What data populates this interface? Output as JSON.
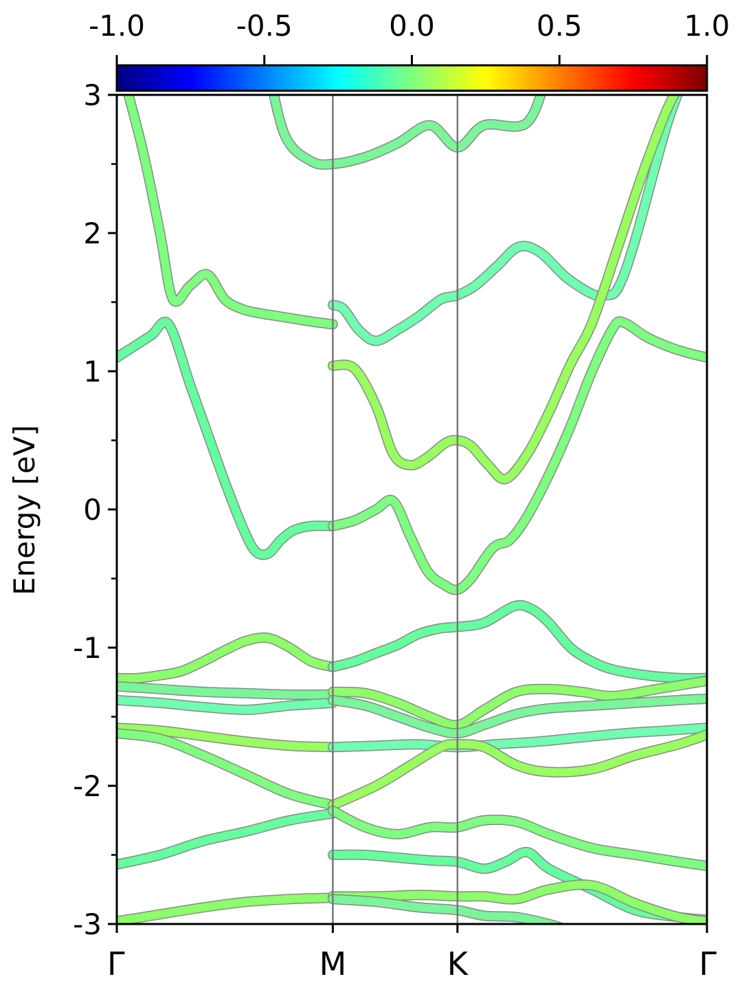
{
  "chart_data": {
    "type": "line",
    "ylabel": "Energy [eV]",
    "xlabel": "",
    "ylim": [
      -3,
      3
    ],
    "y_ticks": [
      -3,
      -2,
      -1,
      0,
      1,
      2,
      3
    ],
    "y_tick_labels": [
      "-3",
      "-2",
      "-1",
      "0",
      "1",
      "2",
      "3"
    ],
    "y_minor_ticks": [
      -2.5,
      -1.5,
      -0.5,
      0.5,
      1.5,
      2.5
    ],
    "k_points": [
      {
        "label": "Γ",
        "x": 0.0
      },
      {
        "label": "M",
        "x": 1.0
      },
      {
        "label": "K",
        "x": 1.577
      },
      {
        "label": "Γ",
        "x": 2.732
      }
    ],
    "colorbar": {
      "range": [
        -1.0,
        1.0
      ],
      "ticks": [
        -1.0,
        -0.5,
        0.0,
        0.5,
        1.0
      ],
      "tick_labels": [
        "-1.0",
        "-0.5",
        "0.0",
        "0.5",
        "1.0"
      ],
      "colormap": "jet",
      "stops": [
        "#00007f",
        "#0000ff",
        "#007fff",
        "#00ffff",
        "#7fff7f",
        "#ffff00",
        "#ff7f00",
        "#ff0000",
        "#7f0000"
      ]
    },
    "grid": false,
    "series": [
      {
        "x": [
          0.02,
          0.12,
          0.2,
          0.26,
          0.34,
          0.42,
          0.5,
          0.58,
          0.66,
          0.74,
          0.82,
          0.9,
          1.0
        ],
        "y": [
          3.2,
          2.6,
          2.0,
          1.52,
          1.62,
          1.7,
          1.52,
          1.45,
          1.42,
          1.4,
          1.38,
          1.36,
          1.34
        ]
      },
      {
        "x": [
          0.0,
          0.08,
          0.16,
          0.24,
          0.34,
          0.42,
          0.5,
          0.58,
          0.64,
          0.7,
          0.76,
          0.82,
          0.9,
          1.0
        ],
        "y": [
          1.1,
          1.18,
          1.26,
          1.34,
          0.9,
          0.55,
          0.2,
          -0.12,
          -0.3,
          -0.32,
          -0.22,
          -0.15,
          -0.12,
          -0.12
        ]
      },
      {
        "x": [
          0.0,
          0.1,
          0.2,
          0.3,
          0.4,
          0.5,
          0.6,
          0.7,
          0.8,
          0.9,
          1.0
        ],
        "y": [
          -1.22,
          -1.22,
          -1.2,
          -1.17,
          -1.1,
          -1.02,
          -0.95,
          -0.93,
          -1.0,
          -1.1,
          -1.14
        ]
      },
      {
        "x": [
          0.0,
          0.2,
          0.4,
          0.6,
          0.8,
          1.0
        ],
        "y": [
          -1.28,
          -1.3,
          -1.32,
          -1.33,
          -1.34,
          -1.34
        ]
      },
      {
        "x": [
          0.0,
          0.2,
          0.4,
          0.6,
          0.8,
          1.0
        ],
        "y": [
          -1.38,
          -1.4,
          -1.43,
          -1.45,
          -1.42,
          -1.4
        ]
      },
      {
        "x": [
          0.0,
          0.2,
          0.4,
          0.6,
          0.8,
          1.0
        ],
        "y": [
          -1.58,
          -1.6,
          -1.64,
          -1.68,
          -1.71,
          -1.72
        ]
      },
      {
        "x": [
          0.0,
          0.2,
          0.4,
          0.6,
          0.8,
          1.0
        ],
        "y": [
          -1.62,
          -1.66,
          -1.78,
          -1.92,
          -2.06,
          -2.14
        ]
      },
      {
        "x": [
          0.0,
          0.2,
          0.4,
          0.6,
          0.8,
          1.0
        ],
        "y": [
          -2.57,
          -2.5,
          -2.4,
          -2.33,
          -2.25,
          -2.2
        ]
      },
      {
        "x": [
          0.0,
          0.2,
          0.4,
          0.6,
          0.8,
          1.0
        ],
        "y": [
          -2.98,
          -2.93,
          -2.88,
          -2.84,
          -2.82,
          -2.81
        ]
      },
      {
        "x": [
          0.7,
          0.78,
          0.9,
          1.0,
          1.15,
          1.3,
          1.45,
          1.577,
          1.7,
          1.9,
          2.0
        ],
        "y": [
          3.2,
          2.7,
          2.52,
          2.5,
          2.55,
          2.65,
          2.78,
          2.62,
          2.78,
          2.8,
          3.2
        ]
      },
      {
        "x": [
          1.0,
          1.05,
          1.12,
          1.2,
          1.3,
          1.4,
          1.5,
          1.577,
          1.66,
          1.76,
          1.86,
          1.96,
          2.08,
          2.2,
          2.26,
          2.32,
          2.4,
          2.55,
          2.65
        ],
        "y": [
          1.48,
          1.45,
          1.3,
          1.22,
          1.3,
          1.4,
          1.52,
          1.55,
          1.62,
          1.76,
          1.9,
          1.86,
          1.68,
          1.56,
          1.55,
          1.6,
          1.95,
          2.8,
          3.2
        ]
      },
      {
        "x": [
          1.0,
          1.1,
          1.2,
          1.28,
          1.36,
          1.44,
          1.52,
          1.577,
          1.64,
          1.72,
          1.8,
          1.9,
          2.0,
          2.1,
          2.2,
          2.32,
          2.45,
          2.58,
          2.7
        ],
        "y": [
          1.04,
          1.02,
          0.75,
          0.4,
          0.32,
          0.38,
          0.48,
          0.5,
          0.46,
          0.32,
          0.22,
          0.4,
          0.7,
          1.05,
          1.35,
          1.9,
          2.5,
          3.0,
          3.2
        ]
      },
      {
        "x": [
          1.0,
          1.1,
          1.2,
          1.28,
          1.36,
          1.44,
          1.52,
          1.577,
          1.64,
          1.74,
          1.82,
          1.9,
          2.0,
          2.1,
          2.2,
          2.3,
          2.35,
          2.45,
          2.55,
          2.65,
          2.732
        ],
        "y": [
          -0.12,
          -0.08,
          0.0,
          0.06,
          -0.2,
          -0.45,
          -0.55,
          -0.58,
          -0.5,
          -0.28,
          -0.22,
          -0.05,
          0.25,
          0.6,
          1.0,
          1.32,
          1.35,
          1.25,
          1.18,
          1.13,
          1.1
        ]
      },
      {
        "x": [
          1.0,
          1.1,
          1.2,
          1.3,
          1.4,
          1.5,
          1.577,
          1.7,
          1.84,
          1.92,
          2.0,
          2.1,
          2.2,
          2.3,
          2.45,
          2.6,
          2.732
        ],
        "y": [
          -1.14,
          -1.1,
          -1.04,
          -0.98,
          -0.9,
          -0.86,
          -0.85,
          -0.82,
          -0.7,
          -0.72,
          -0.82,
          -1.0,
          -1.1,
          -1.16,
          -1.2,
          -1.22,
          -1.22
        ]
      },
      {
        "x": [
          1.0,
          1.15,
          1.3,
          1.45,
          1.577,
          1.7,
          1.85,
          2.0,
          2.15,
          2.3,
          2.5,
          2.732
        ],
        "y": [
          -1.32,
          -1.33,
          -1.4,
          -1.5,
          -1.56,
          -1.45,
          -1.32,
          -1.3,
          -1.32,
          -1.35,
          -1.3,
          -1.24
        ]
      },
      {
        "x": [
          1.0,
          1.15,
          1.3,
          1.45,
          1.577,
          1.7,
          1.85,
          2.0,
          2.2,
          2.4,
          2.6,
          2.732
        ],
        "y": [
          -1.38,
          -1.42,
          -1.5,
          -1.58,
          -1.62,
          -1.56,
          -1.48,
          -1.44,
          -1.42,
          -1.4,
          -1.38,
          -1.37
        ]
      },
      {
        "x": [
          1.0,
          1.2,
          1.4,
          1.577,
          1.75,
          1.95,
          2.15,
          2.35,
          2.55,
          2.732
        ],
        "y": [
          -1.72,
          -1.71,
          -1.7,
          -1.72,
          -1.7,
          -1.68,
          -1.65,
          -1.62,
          -1.6,
          -1.58
        ]
      },
      {
        "x": [
          1.0,
          1.2,
          1.35,
          1.5,
          1.577,
          1.7,
          1.85,
          2.0,
          2.2,
          2.4,
          2.6,
          2.732
        ],
        "y": [
          -2.14,
          -2.0,
          -1.86,
          -1.72,
          -1.7,
          -1.72,
          -1.85,
          -1.9,
          -1.88,
          -1.78,
          -1.7,
          -1.63
        ]
      },
      {
        "x": [
          1.0,
          1.15,
          1.3,
          1.45,
          1.577,
          1.7,
          1.85,
          2.0,
          2.2,
          2.4,
          2.6,
          2.732
        ],
        "y": [
          -2.18,
          -2.3,
          -2.35,
          -2.3,
          -2.3,
          -2.25,
          -2.26,
          -2.35,
          -2.45,
          -2.5,
          -2.55,
          -2.58
        ]
      },
      {
        "x": [
          1.0,
          1.15,
          1.3,
          1.45,
          1.577,
          1.7,
          1.8,
          1.9,
          2.0,
          2.2,
          2.4,
          2.6,
          2.732
        ],
        "y": [
          -2.5,
          -2.5,
          -2.52,
          -2.54,
          -2.55,
          -2.6,
          -2.55,
          -2.48,
          -2.6,
          -2.75,
          -2.9,
          -2.95,
          -2.97
        ]
      },
      {
        "x": [
          1.0,
          1.2,
          1.4,
          1.577,
          1.7,
          1.85,
          2.0,
          2.2,
          2.4,
          2.6,
          2.732
        ],
        "y": [
          -2.8,
          -2.8,
          -2.79,
          -2.8,
          -2.8,
          -2.82,
          -2.75,
          -2.72,
          -2.85,
          -2.95,
          -2.98
        ]
      },
      {
        "x": [
          1.0,
          1.2,
          1.4,
          1.577,
          1.7,
          1.85,
          2.0,
          2.1,
          2.2
        ],
        "y": [
          -2.82,
          -2.84,
          -2.88,
          -2.9,
          -2.94,
          -2.95,
          -3.0,
          -3.05,
          -3.1
        ]
      }
    ]
  }
}
